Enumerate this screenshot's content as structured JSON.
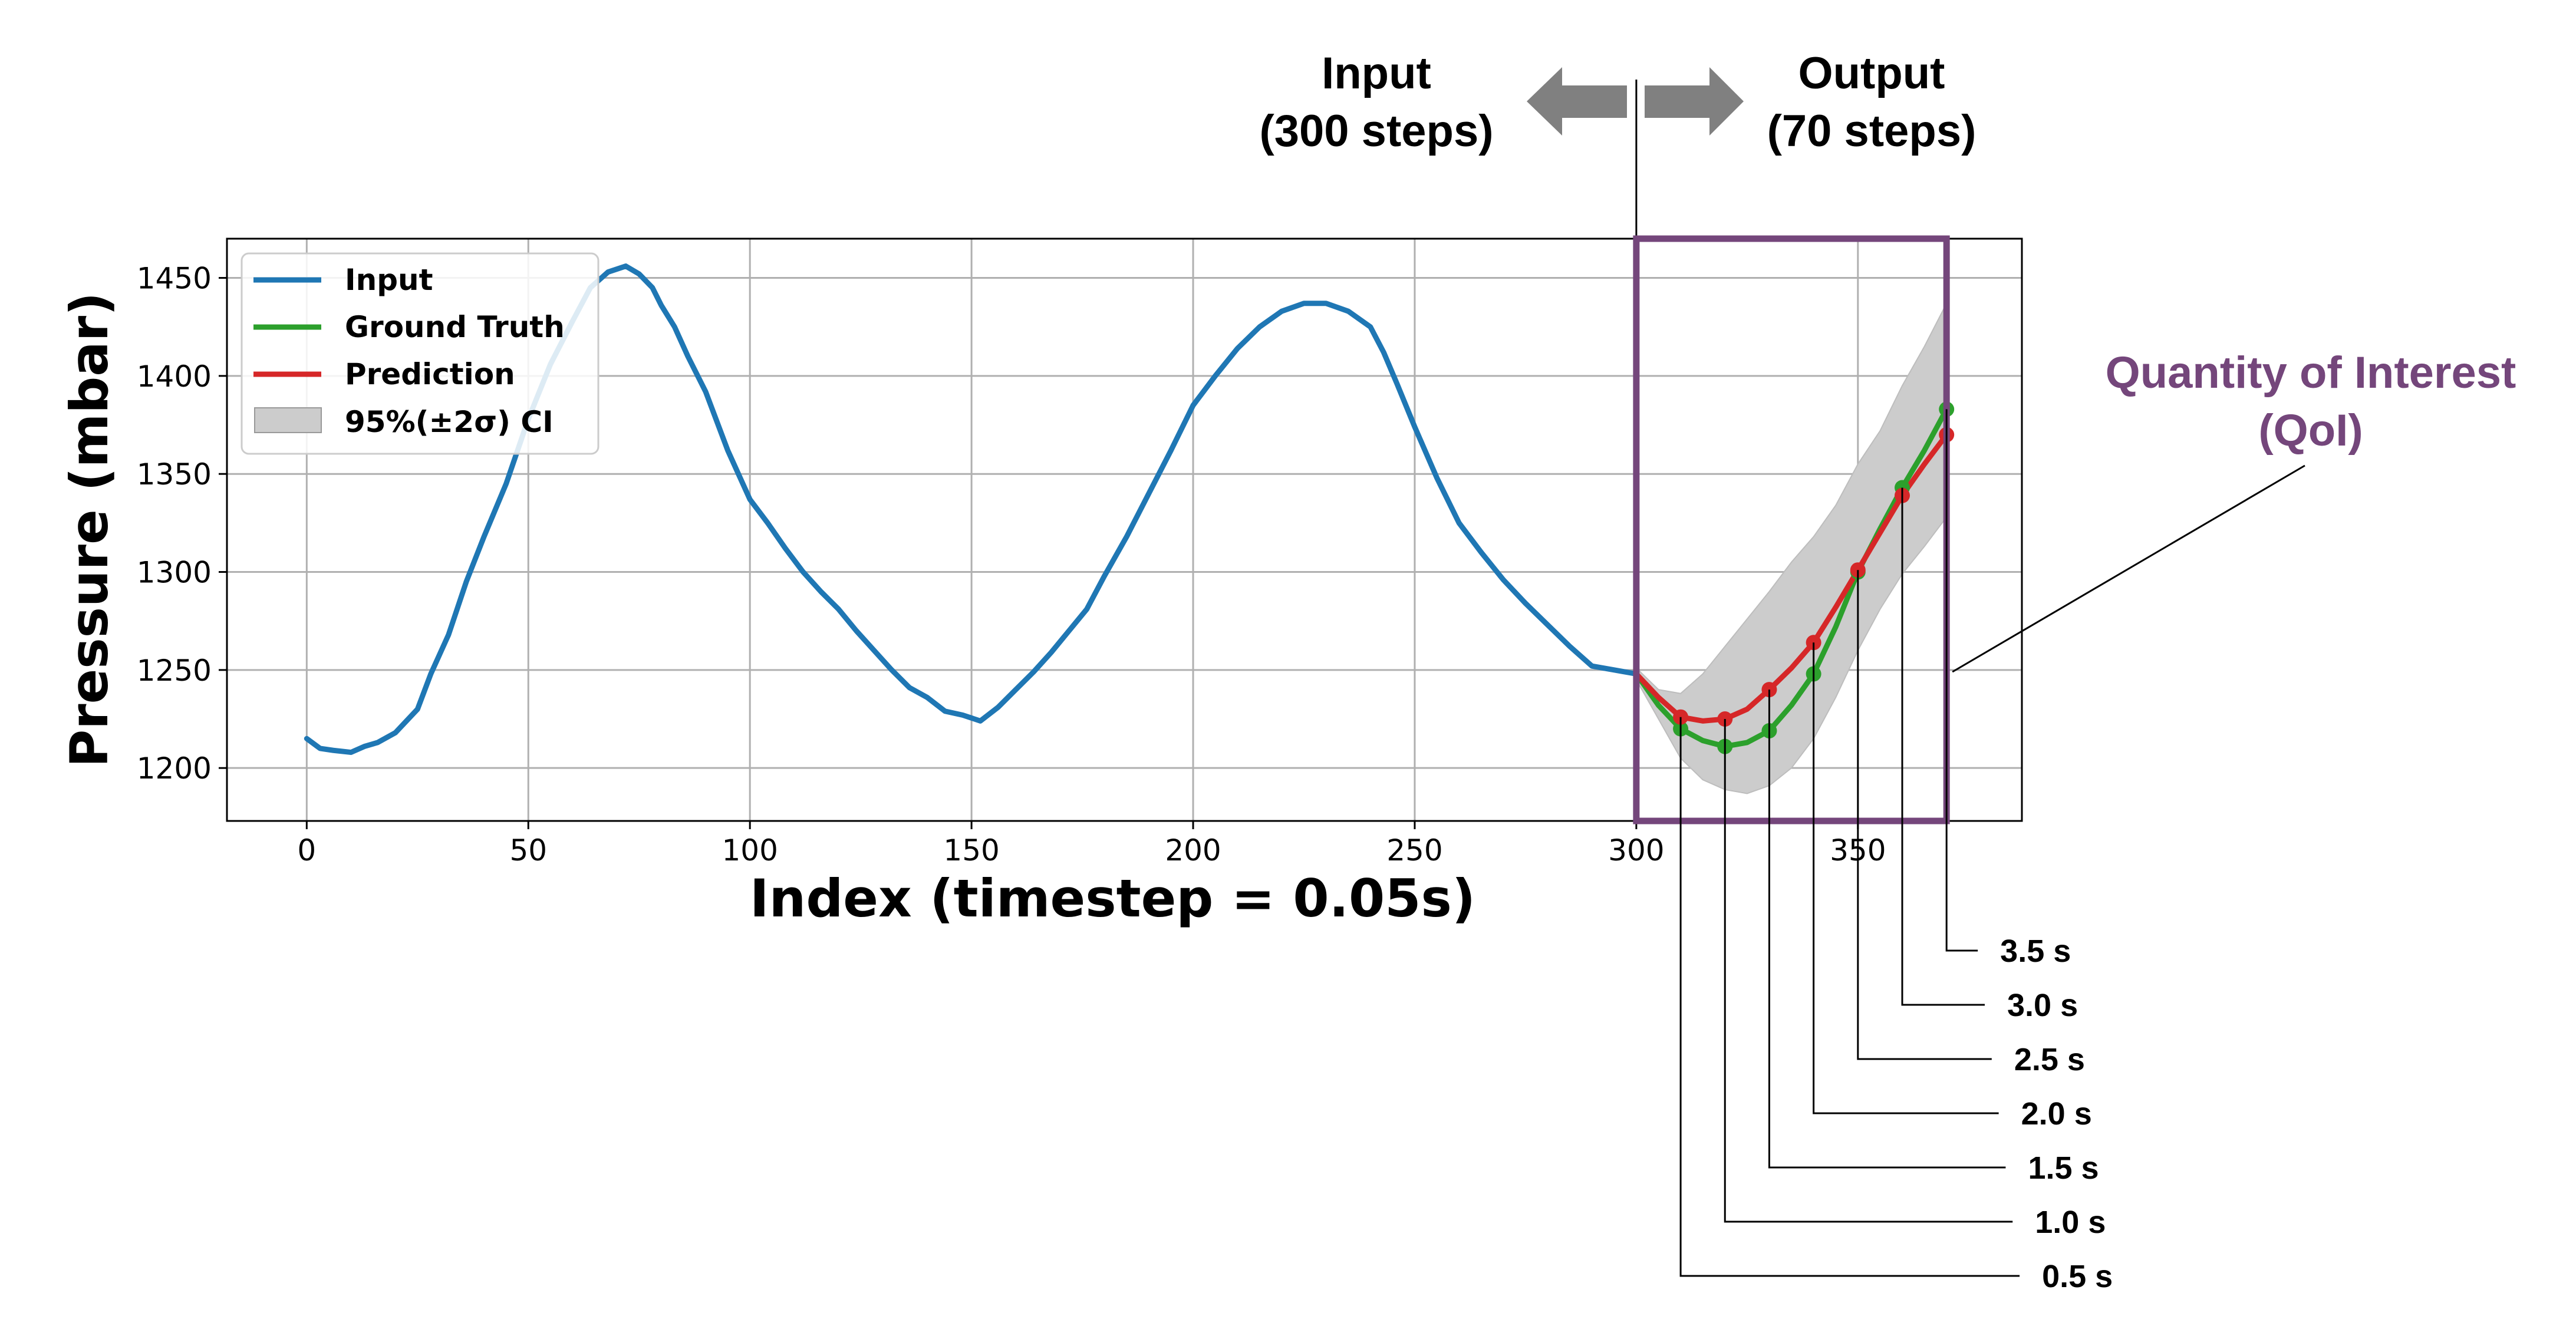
{
  "chart_data": {
    "type": "line",
    "xlabel": "Index (timestep = 0.05s)",
    "ylabel": "Pressure (mbar)",
    "xlim": [
      -18,
      387
    ],
    "ylim": [
      1173,
      1470
    ],
    "xticks": [
      0,
      50,
      100,
      150,
      200,
      250,
      300,
      350
    ],
    "yticks": [
      1200,
      1250,
      1300,
      1350,
      1400,
      1450
    ],
    "grid": true,
    "legend": {
      "placement": "top-left",
      "entries": [
        "Input",
        "Ground Truth",
        "Prediction",
        "95%(±2σ) CI"
      ]
    },
    "colors": {
      "input": "#1f77b4",
      "ground_truth": "#2ca02c",
      "prediction": "#d62728",
      "ci": "#cccccc",
      "qoi": "#74467b",
      "arrow": "#808080"
    },
    "series": [
      {
        "name": "Input",
        "x": [
          0,
          3,
          6,
          10,
          13,
          16,
          20,
          25,
          28,
          32,
          36,
          40,
          45,
          50,
          55,
          60,
          64,
          68,
          72,
          75,
          78,
          80,
          83,
          86,
          90,
          95,
          100,
          104,
          108,
          112,
          116,
          120,
          124,
          128,
          132,
          136,
          140,
          144,
          148,
          152,
          156,
          160,
          164,
          168,
          172,
          176,
          180,
          185,
          190,
          195,
          200,
          205,
          210,
          215,
          220,
          225,
          230,
          235,
          240,
          243,
          246,
          250,
          255,
          260,
          265,
          270,
          275,
          280,
          285,
          290,
          295,
          300
        ],
        "values": [
          1215,
          1210,
          1209,
          1208,
          1211,
          1213,
          1218,
          1230,
          1248,
          1268,
          1295,
          1318,
          1345,
          1378,
          1406,
          1428,
          1445,
          1453,
          1456,
          1452,
          1445,
          1436,
          1425,
          1410,
          1392,
          1362,
          1337,
          1325,
          1312,
          1300,
          1290,
          1281,
          1270,
          1260,
          1250,
          1241,
          1236,
          1229,
          1227,
          1224,
          1231,
          1240,
          1249,
          1259,
          1270,
          1281,
          1298,
          1318,
          1340,
          1362,
          1385,
          1400,
          1414,
          1425,
          1433,
          1437,
          1437,
          1433,
          1425,
          1412,
          1396,
          1374,
          1348,
          1325,
          1310,
          1296,
          1284,
          1273,
          1262,
          1252,
          1250,
          1248
        ]
      },
      {
        "name": "Ground Truth",
        "x": [
          300,
          305,
          310,
          315,
          320,
          325,
          330,
          335,
          340,
          345,
          350,
          355,
          360,
          365,
          370
        ],
        "values": [
          1248,
          1232,
          1220,
          1214,
          1211,
          1213,
          1219,
          1232,
          1248,
          1272,
          1300,
          1322,
          1343,
          1362,
          1383
        ]
      },
      {
        "name": "Prediction",
        "x": [
          300,
          305,
          310,
          315,
          320,
          325,
          330,
          335,
          340,
          345,
          350,
          355,
          360,
          365,
          370
        ],
        "values": [
          1248,
          1236,
          1226,
          1224,
          1225,
          1230,
          1240,
          1251,
          1264,
          1282,
          1301,
          1320,
          1339,
          1355,
          1370
        ]
      },
      {
        "name": "95%(±2σ) CI",
        "x": [
          300,
          305,
          310,
          315,
          320,
          325,
          330,
          335,
          340,
          345,
          350,
          355,
          360,
          365,
          370
        ],
        "lower": [
          1245,
          1225,
          1205,
          1194,
          1189,
          1187,
          1191,
          1200,
          1215,
          1236,
          1260,
          1281,
          1299,
          1313,
          1328
        ],
        "upper": [
          1251,
          1240,
          1238,
          1248,
          1262,
          1276,
          1290,
          1305,
          1318,
          1334,
          1355,
          1372,
          1395,
          1415,
          1437
        ]
      }
    ],
    "qoi_points": {
      "x": [
        310,
        320,
        330,
        340,
        350,
        360,
        370
      ],
      "labels": [
        "0.5 s",
        "1.0 s",
        "1.5 s",
        "2.0 s",
        "2.5 s",
        "3.0 s",
        "3.5 s"
      ]
    },
    "annotations": {
      "input_label_line1": "Input",
      "input_label_line2": "(300 steps)",
      "output_label_line1": "Output",
      "output_label_line2": "(70 steps)",
      "qoi_label_line1": "Quantity of Interest",
      "qoi_label_line2": "(QoI)"
    }
  }
}
